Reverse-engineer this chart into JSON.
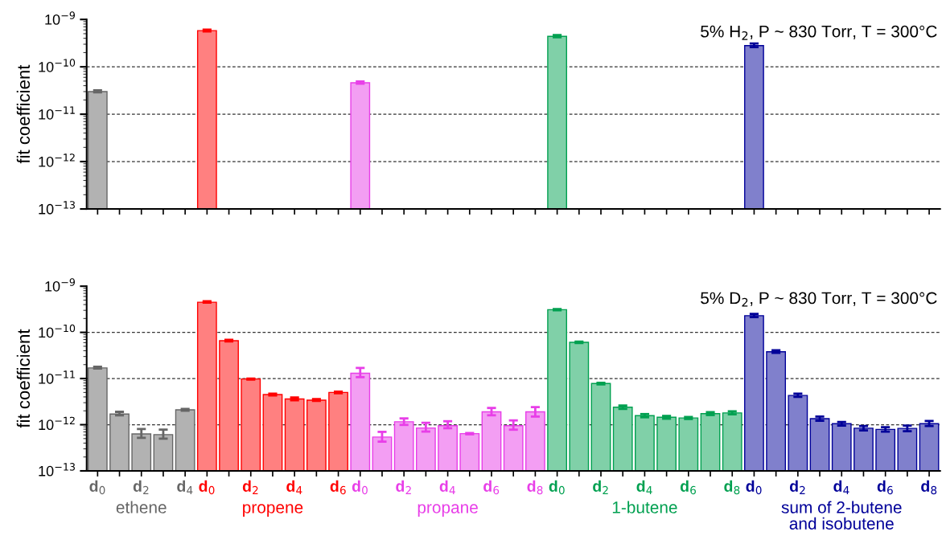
{
  "chart_data": [
    {
      "type": "bar",
      "title": "5% H$_{2}$, P ~ 830 Torr, T = 300°C",
      "ylabel": "fit coefficient",
      "log": "y",
      "tick_labels": "y",
      "categories": [
        null,
        null,
        null,
        null,
        null,
        null,
        null,
        null,
        null,
        null,
        null,
        null,
        null,
        null,
        null,
        null,
        null,
        null,
        null,
        null,
        null,
        null,
        null,
        null,
        null,
        null,
        null,
        null,
        null,
        null,
        null,
        null,
        null,
        null,
        null,
        null,
        null,
        null,
        null
      ],
      "ylim": [
        1e-13,
        1e-09
      ],
      "yticks": [
        {
          "value": 1e-13,
          "label": "10$^{−13}$"
        },
        {
          "value": 1e-12,
          "label": "10$^{−12}$"
        },
        {
          "value": 1e-11,
          "label": "10$^{−11}$"
        },
        {
          "value": 1e-10,
          "label": "10$^{−10}$"
        },
        {
          "value": 1e-09,
          "label": "10$^{−9}$"
        }
      ],
      "ref_lines": [
        {
          "axis": "y",
          "value": 1e-12,
          "line_style": "dashed"
        },
        {
          "axis": "y",
          "value": 1e-11,
          "line_style": "dashed"
        },
        {
          "axis": "y",
          "value": 1e-10,
          "line_style": "dashed"
        }
      ],
      "series": [
        {
          "color": "#666666",
          "values": [
            3e-11,
            null,
            null,
            null,
            null,
            null,
            null,
            null,
            null,
            null,
            null,
            null,
            null,
            null,
            null,
            null,
            null,
            null,
            null,
            null,
            null,
            null,
            null,
            null,
            null,
            null,
            null,
            null,
            null,
            null,
            null,
            null,
            null,
            null,
            null,
            null,
            null,
            null,
            null
          ],
          "errors": [
            [
              2.9e-11,
              3.2e-11
            ],
            null,
            null,
            null,
            null,
            null,
            null,
            null,
            null,
            null,
            null,
            null,
            null,
            null,
            null,
            null,
            null,
            null,
            null,
            null,
            null,
            null,
            null,
            null,
            null,
            null,
            null,
            null,
            null,
            null,
            null,
            null,
            null,
            null,
            null,
            null,
            null,
            null,
            null
          ]
        },
        {
          "color": "#ff0000",
          "values": [
            null,
            null,
            null,
            null,
            null,
            5.8e-10,
            null,
            null,
            null,
            null,
            null,
            null,
            null,
            null,
            null,
            null,
            null,
            null,
            null,
            null,
            null,
            null,
            null,
            null,
            null,
            null,
            null,
            null,
            null,
            null,
            null,
            null,
            null,
            null,
            null,
            null,
            null,
            null,
            null
          ],
          "errors": [
            null,
            null,
            null,
            null,
            null,
            [
              5.6e-10,
              6.1e-10
            ],
            null,
            null,
            null,
            null,
            null,
            null,
            null,
            null,
            null,
            null,
            null,
            null,
            null,
            null,
            null,
            null,
            null,
            null,
            null,
            null,
            null,
            null,
            null,
            null,
            null,
            null,
            null,
            null,
            null,
            null,
            null,
            null,
            null
          ]
        },
        {
          "color": "#e83ee8",
          "values": [
            null,
            null,
            null,
            null,
            null,
            null,
            null,
            null,
            null,
            null,
            null,
            null,
            4.6e-11,
            null,
            null,
            null,
            null,
            null,
            null,
            null,
            null,
            null,
            null,
            null,
            null,
            null,
            null,
            null,
            null,
            null,
            null,
            null,
            null,
            null,
            null,
            null,
            null,
            null,
            null
          ],
          "errors": [
            null,
            null,
            null,
            null,
            null,
            null,
            null,
            null,
            null,
            null,
            null,
            null,
            [
              4.4e-11,
              4.9e-11
            ],
            null,
            null,
            null,
            null,
            null,
            null,
            null,
            null,
            null,
            null,
            null,
            null,
            null,
            null,
            null,
            null,
            null,
            null,
            null,
            null,
            null,
            null,
            null,
            null,
            null,
            null
          ]
        },
        {
          "color": "#00a050",
          "values": [
            null,
            null,
            null,
            null,
            null,
            null,
            null,
            null,
            null,
            null,
            null,
            null,
            null,
            null,
            null,
            null,
            null,
            null,
            null,
            null,
            null,
            4.4e-10,
            null,
            null,
            null,
            null,
            null,
            null,
            null,
            null,
            null,
            null,
            null,
            null,
            null,
            null,
            null,
            null,
            null
          ],
          "errors": [
            null,
            null,
            null,
            null,
            null,
            null,
            null,
            null,
            null,
            null,
            null,
            null,
            null,
            null,
            null,
            null,
            null,
            null,
            null,
            null,
            null,
            [
              4.2e-10,
              4.7e-10
            ],
            null,
            null,
            null,
            null,
            null,
            null,
            null,
            null,
            null,
            null,
            null,
            null,
            null,
            null,
            null,
            null,
            null
          ]
        },
        {
          "color": "#000099",
          "values": [
            null,
            null,
            null,
            null,
            null,
            null,
            null,
            null,
            null,
            null,
            null,
            null,
            null,
            null,
            null,
            null,
            null,
            null,
            null,
            null,
            null,
            null,
            null,
            null,
            null,
            null,
            null,
            null,
            null,
            null,
            2.8e-10,
            null,
            null,
            null,
            null,
            null,
            null,
            null,
            null
          ],
          "errors": [
            null,
            null,
            null,
            null,
            null,
            null,
            null,
            null,
            null,
            null,
            null,
            null,
            null,
            null,
            null,
            null,
            null,
            null,
            null,
            null,
            null,
            null,
            null,
            null,
            null,
            null,
            null,
            null,
            null,
            null,
            [
              2.6e-10,
              3.1e-10
            ],
            null,
            null,
            null,
            null,
            null,
            null,
            null,
            null
          ]
        }
      ]
    },
    {
      "type": "bar",
      "title": "5% D$_{2}$, P ~ 830 Torr, T = 300°C",
      "ylabel": "fit coefficient",
      "log": "y",
      "categories": [
        "d$_{0}$",
        null,
        "d$_{2}$",
        null,
        "d$_{4}$",
        "d$_{0}$",
        null,
        "d$_{2}$",
        null,
        "d$_{4}$",
        null,
        "d$_{6}$",
        "d$_{0}$",
        null,
        "d$_{2}$",
        null,
        "d$_{4}$",
        null,
        "d$_{6}$",
        null,
        "d$_{8}$",
        "d$_{0}$",
        null,
        "d$_{2}$",
        null,
        "d$_{4}$",
        null,
        "d$_{6}$",
        null,
        "d$_{8}$",
        "d$_{0}$",
        null,
        "d$_{2}$",
        null,
        "d$_{4}$",
        null,
        "d$_{6}$",
        null,
        "d$_{8}$"
      ],
      "ylim": [
        1e-13,
        1e-09
      ],
      "yticks": [
        {
          "value": 1e-13,
          "label": "10$^{−13}$"
        },
        {
          "value": 1e-12,
          "label": "10$^{−12}$"
        },
        {
          "value": 1e-11,
          "label": "10$^{−11}$"
        },
        {
          "value": 1e-10,
          "label": "10$^{−10}$"
        },
        {
          "value": 1e-09,
          "label": "10$^{−9}$"
        }
      ],
      "ref_lines": [
        {
          "axis": "y",
          "value": 1e-12,
          "line_style": "dashed"
        },
        {
          "axis": "y",
          "value": 1e-11,
          "line_style": "dashed"
        },
        {
          "axis": "y",
          "value": 1e-10,
          "line_style": "dashed"
        }
      ],
      "series": [
        {
          "name": "ethene",
          "color": "#666666",
          "values": [
            1.7e-11,
            1.7e-12,
            6.3e-13,
            6.1e-13,
            2.1e-12,
            null,
            null,
            null,
            null,
            null,
            null,
            null,
            null,
            null,
            null,
            null,
            null,
            null,
            null,
            null,
            null,
            null,
            null,
            null,
            null,
            null,
            null,
            null,
            null,
            null,
            null,
            null,
            null,
            null,
            null,
            null,
            null,
            null,
            null
          ],
          "errors": [
            [
              1.65e-11,
              1.8e-11
            ],
            [
              1.6e-12,
              1.9e-12
            ],
            [
              5.2e-13,
              8.1e-13
            ],
            [
              5e-13,
              7.8e-13
            ],
            [
              2e-12,
              2.2e-12
            ],
            null,
            null,
            null,
            null,
            null,
            null,
            null,
            null,
            null,
            null,
            null,
            null,
            null,
            null,
            null,
            null,
            null,
            null,
            null,
            null,
            null,
            null,
            null,
            null,
            null,
            null,
            null,
            null,
            null,
            null,
            null,
            null,
            null,
            null
          ]
        },
        {
          "name": "propene",
          "color": "#ff0000",
          "values": [
            null,
            null,
            null,
            null,
            null,
            4.5e-10,
            6.6e-11,
            9.8e-12,
            4.5e-12,
            3.6e-12,
            3.4e-12,
            5e-12,
            null,
            null,
            null,
            null,
            null,
            null,
            null,
            null,
            null,
            null,
            null,
            null,
            null,
            null,
            null,
            null,
            null,
            null,
            null,
            null,
            null,
            null,
            null,
            null,
            null,
            null,
            null
          ],
          "errors": [
            null,
            null,
            null,
            null,
            null,
            [
              4.4e-10,
              4.7e-10
            ],
            [
              6.4e-11,
              6.9e-11
            ],
            [
              9.5e-12,
              1e-11
            ],
            [
              4.3e-12,
              4.7e-12
            ],
            [
              3.4e-12,
              3.9e-12
            ],
            [
              3.3e-12,
              3.6e-12
            ],
            [
              4.8e-12,
              5.2e-12
            ],
            null,
            null,
            null,
            null,
            null,
            null,
            null,
            null,
            null,
            null,
            null,
            null,
            null,
            null,
            null,
            null,
            null,
            null,
            null,
            null,
            null,
            null,
            null,
            null,
            null,
            null,
            null
          ]
        },
        {
          "name": "propane",
          "color": "#e83ee8",
          "values": [
            null,
            null,
            null,
            null,
            null,
            null,
            null,
            null,
            null,
            null,
            null,
            null,
            1.3e-11,
            5.4e-13,
            1.16e-12,
            8.5e-13,
            9.5e-13,
            6.4e-13,
            1.9e-12,
            9.5e-13,
            1.9e-12,
            null,
            null,
            null,
            null,
            null,
            null,
            null,
            null,
            null,
            null,
            null,
            null,
            null,
            null,
            null,
            null,
            null,
            null
          ],
          "errors": [
            null,
            null,
            null,
            null,
            null,
            null,
            null,
            null,
            null,
            null,
            null,
            null,
            [
              1.07e-11,
              1.7e-11
            ],
            [
              4.3e-13,
              7e-13
            ],
            [
              9.9e-13,
              1.37e-12
            ],
            [
              7.1e-13,
              1.1e-12
            ],
            [
              8.4e-13,
              1.19e-12
            ],
            [
              6.2e-13,
              6.6e-13
            ],
            [
              1.6e-12,
              2.3e-12
            ],
            [
              7.8e-13,
              1.24e-12
            ],
            [
              1.5e-12,
              2.4e-12
            ],
            null,
            null,
            null,
            null,
            null,
            null,
            null,
            null,
            null,
            null,
            null,
            null,
            null,
            null,
            null,
            null,
            null,
            null
          ]
        },
        {
          "name": "1-butene",
          "color": "#00a050",
          "values": [
            null,
            null,
            null,
            null,
            null,
            null,
            null,
            null,
            null,
            null,
            null,
            null,
            null,
            null,
            null,
            null,
            null,
            null,
            null,
            null,
            null,
            3.1e-10,
            6.1e-11,
            7.8e-12,
            2.4e-12,
            1.57e-12,
            1.45e-12,
            1.4e-12,
            1.74e-12,
            1.8e-12,
            null,
            null,
            null,
            null,
            null,
            null,
            null,
            null,
            null
          ],
          "errors": [
            null,
            null,
            null,
            null,
            null,
            null,
            null,
            null,
            null,
            null,
            null,
            null,
            null,
            null,
            null,
            null,
            null,
            null,
            null,
            null,
            null,
            [
              3e-10,
              3.2e-10
            ],
            [
              5.9e-11,
              6.3e-11
            ],
            [
              7.5e-12,
              8.1e-12
            ],
            [
              2.2e-12,
              2.6e-12
            ],
            [
              1.45e-12,
              1.7e-12
            ],
            [
              1.35e-12,
              1.55e-12
            ],
            [
              1.33e-12,
              1.47e-12
            ],
            [
              1.62e-12,
              1.87e-12
            ],
            [
              1.68e-12,
              1.95e-12
            ],
            null,
            null,
            null,
            null,
            null,
            null,
            null,
            null,
            null
          ]
        },
        {
          "name": "sum of 2-butene\nand isobutene",
          "color": "#000099",
          "values": [
            null,
            null,
            null,
            null,
            null,
            null,
            null,
            null,
            null,
            null,
            null,
            null,
            null,
            null,
            null,
            null,
            null,
            null,
            null,
            null,
            null,
            null,
            null,
            null,
            null,
            null,
            null,
            null,
            null,
            null,
            2.3e-10,
            3.8e-11,
            4.3e-12,
            1.35e-12,
            1.05e-12,
            8.4e-13,
            7.9e-13,
            8.3e-13,
            1.05e-12
          ],
          "errors": [
            null,
            null,
            null,
            null,
            null,
            null,
            null,
            null,
            null,
            null,
            null,
            null,
            null,
            null,
            null,
            null,
            null,
            null,
            null,
            null,
            null,
            null,
            null,
            null,
            null,
            null,
            null,
            null,
            null,
            null,
            [
              2.15e-10,
              2.5e-10
            ],
            [
              3.6e-11,
              4.1e-11
            ],
            [
              4e-12,
              4.7e-12
            ],
            [
              1.22e-12,
              1.5e-12
            ],
            [
              9.6e-13,
              1.15e-12
            ],
            [
              7.5e-13,
              9.4e-13
            ],
            [
              7.1e-13,
              8.8e-13
            ],
            [
              7.2e-13,
              9.6e-13
            ],
            [
              9.4e-13,
              1.2e-12
            ]
          ]
        }
      ]
    }
  ]
}
